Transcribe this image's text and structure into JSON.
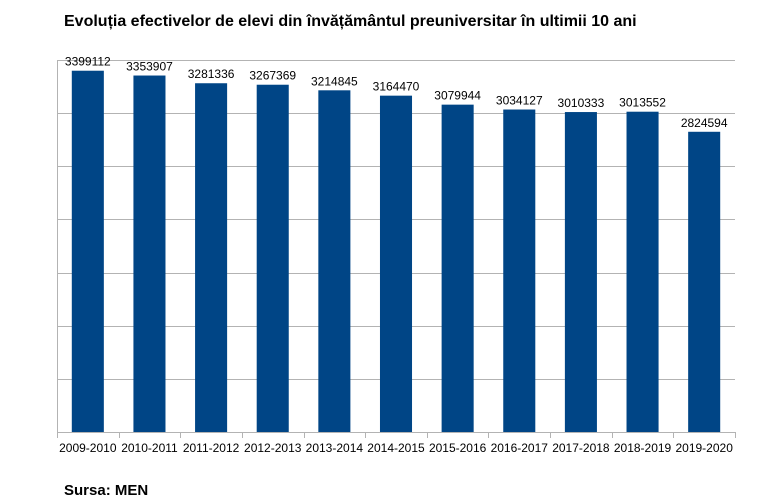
{
  "title": "Evoluția efectivelor de elevi din învățământul preuniversitar în ultimii 10 ani",
  "source": "Sursa: MEN",
  "colors": {
    "bar": "#004586",
    "grid": "#b3b3b3",
    "axis": "#b3b3b3",
    "text": "#000000"
  },
  "chart_data": {
    "type": "bar",
    "title": "Evoluția efectivelor de elevi din învățământul preuniversitar în ultimii 10 ani",
    "categories": [
      "2009-2010",
      "2010-2011",
      "2011-2012",
      "2012-2013",
      "2013-2014",
      "2014-2015",
      "2015-2016",
      "2016-2017",
      "2017-2018",
      "2018-2019",
      "2019-2020"
    ],
    "values": [
      3399112,
      3353907,
      3281336,
      3267369,
      3214845,
      3164470,
      3079944,
      3034127,
      3010333,
      3013552,
      2824594
    ],
    "xlabel": "",
    "ylabel": "",
    "ylim": [
      0,
      3500000
    ],
    "y_gridlines": [
      0,
      500000,
      1000000,
      1500000,
      2000000,
      2500000,
      3000000,
      3500000
    ],
    "y_tick_labels_visible": false,
    "data_labels": true,
    "grid": true,
    "legend": "none"
  }
}
